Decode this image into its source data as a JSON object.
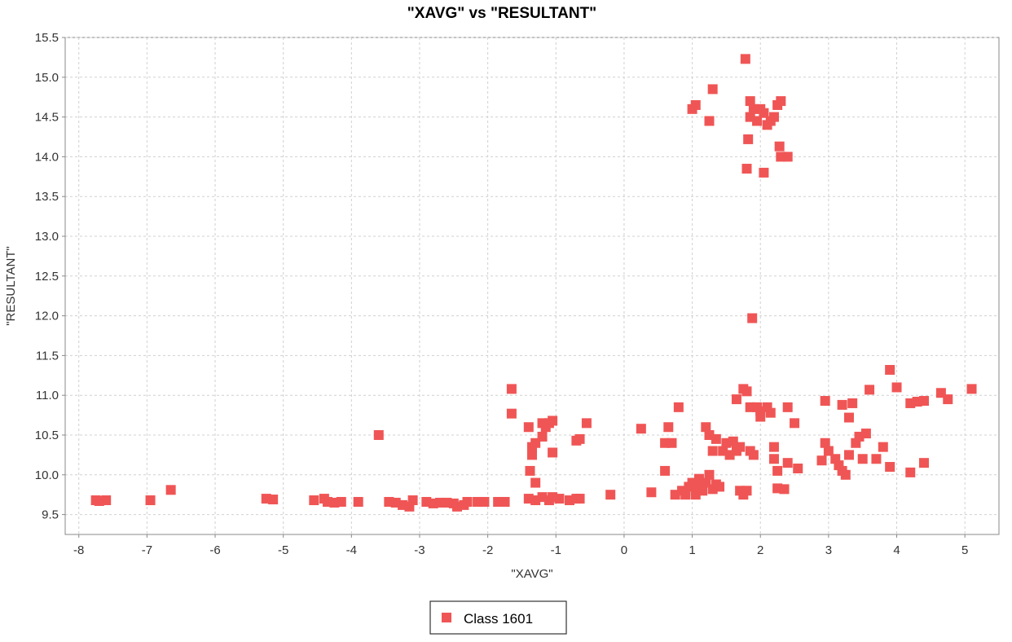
{
  "chart_data": {
    "type": "scatter",
    "title": "\"XAVG\" vs \"RESULTANT\"",
    "xlabel": "\"XAVG\"",
    "ylabel": "\"RESULTANT\"",
    "xlim": [
      -8.2,
      5.5
    ],
    "ylim": [
      9.25,
      15.5
    ],
    "x_ticks": [
      "-8",
      "-7",
      "-6",
      "-5",
      "-4",
      "-3",
      "-2",
      "-1",
      "0",
      "1",
      "2",
      "3",
      "4",
      "5"
    ],
    "y_ticks": [
      "9.5",
      "10.0",
      "10.5",
      "11.0",
      "11.5",
      "12.0",
      "12.5",
      "13.0",
      "13.5",
      "14.0",
      "14.5",
      "15.0",
      "15.5"
    ],
    "grid": true,
    "legend_position": "bottom-center",
    "marker": "square",
    "series": [
      {
        "name": "Class 1601",
        "color": "#f05555",
        "points": [
          [
            -7.75,
            9.68
          ],
          [
            -7.7,
            9.67
          ],
          [
            -7.6,
            9.68
          ],
          [
            -6.95,
            9.68
          ],
          [
            -6.65,
            9.81
          ],
          [
            -5.25,
            9.7
          ],
          [
            -5.15,
            9.69
          ],
          [
            -4.55,
            9.68
          ],
          [
            -4.4,
            9.7
          ],
          [
            -4.35,
            9.66
          ],
          [
            -4.25,
            9.65
          ],
          [
            -4.15,
            9.66
          ],
          [
            -3.9,
            9.66
          ],
          [
            -3.6,
            10.5
          ],
          [
            -3.45,
            9.66
          ],
          [
            -3.35,
            9.65
          ],
          [
            -3.25,
            9.62
          ],
          [
            -3.15,
            9.6
          ],
          [
            -3.1,
            9.68
          ],
          [
            -2.9,
            9.66
          ],
          [
            -2.8,
            9.64
          ],
          [
            -2.7,
            9.65
          ],
          [
            -2.6,
            9.65
          ],
          [
            -2.5,
            9.64
          ],
          [
            -2.45,
            9.6
          ],
          [
            -2.35,
            9.62
          ],
          [
            -2.3,
            9.66
          ],
          [
            -2.15,
            9.66
          ],
          [
            -2.05,
            9.66
          ],
          [
            -1.85,
            9.66
          ],
          [
            -1.75,
            9.66
          ],
          [
            -1.65,
            11.08
          ],
          [
            -1.65,
            10.77
          ],
          [
            -1.4,
            10.6
          ],
          [
            -1.38,
            10.05
          ],
          [
            -1.35,
            10.35
          ],
          [
            -1.35,
            10.25
          ],
          [
            -1.3,
            10.4
          ],
          [
            -1.3,
            9.9
          ],
          [
            -1.2,
            10.48
          ],
          [
            -1.2,
            10.65
          ],
          [
            -1.15,
            10.6
          ],
          [
            -1.1,
            10.65
          ],
          [
            -1.05,
            10.68
          ],
          [
            -1.05,
            10.28
          ],
          [
            -1.4,
            9.7
          ],
          [
            -1.3,
            9.68
          ],
          [
            -1.2,
            9.72
          ],
          [
            -1.1,
            9.68
          ],
          [
            -1.05,
            9.72
          ],
          [
            -0.95,
            9.7
          ],
          [
            -0.8,
            9.68
          ],
          [
            -0.7,
            9.7
          ],
          [
            -0.65,
            9.7
          ],
          [
            -0.7,
            10.43
          ],
          [
            -0.65,
            10.45
          ],
          [
            -0.55,
            10.65
          ],
          [
            -0.2,
            9.75
          ],
          [
            0.25,
            10.58
          ],
          [
            0.4,
            9.78
          ],
          [
            0.6,
            10.4
          ],
          [
            0.6,
            10.05
          ],
          [
            0.65,
            10.6
          ],
          [
            0.7,
            10.4
          ],
          [
            0.75,
            9.75
          ],
          [
            0.8,
            10.85
          ],
          [
            0.85,
            9.8
          ],
          [
            0.9,
            9.75
          ],
          [
            0.95,
            9.85
          ],
          [
            1.0,
            9.9
          ],
          [
            1.05,
            9.8
          ],
          [
            1.1,
            9.95
          ],
          [
            1.05,
            9.75
          ],
          [
            1.1,
            9.85
          ],
          [
            1.15,
            9.8
          ],
          [
            1.2,
            9.9
          ],
          [
            1.25,
            10.0
          ],
          [
            1.3,
            9.82
          ],
          [
            1.35,
            9.88
          ],
          [
            1.4,
            9.85
          ],
          [
            1.2,
            10.6
          ],
          [
            1.25,
            10.5
          ],
          [
            1.3,
            10.3
          ],
          [
            1.35,
            10.45
          ],
          [
            1.45,
            10.3
          ],
          [
            1.5,
            10.4
          ],
          [
            1.55,
            10.25
          ],
          [
            1.6,
            10.42
          ],
          [
            1.65,
            10.3
          ],
          [
            1.7,
            10.35
          ],
          [
            1.65,
            10.95
          ],
          [
            1.75,
            11.08
          ],
          [
            1.8,
            11.05
          ],
          [
            1.85,
            10.85
          ],
          [
            1.7,
            9.8
          ],
          [
            1.75,
            9.75
          ],
          [
            1.8,
            9.8
          ],
          [
            1.85,
            10.3
          ],
          [
            1.9,
            10.25
          ],
          [
            1.95,
            10.85
          ],
          [
            2.0,
            10.8
          ],
          [
            2.0,
            10.73
          ],
          [
            2.1,
            10.85
          ],
          [
            2.15,
            10.78
          ],
          [
            2.2,
            10.2
          ],
          [
            2.2,
            10.35
          ],
          [
            2.25,
            10.05
          ],
          [
            2.25,
            9.83
          ],
          [
            2.35,
            9.82
          ],
          [
            2.4,
            10.15
          ],
          [
            2.4,
            10.85
          ],
          [
            2.5,
            10.65
          ],
          [
            2.55,
            10.08
          ],
          [
            1.0,
            14.6
          ],
          [
            1.05,
            14.65
          ],
          [
            1.3,
            14.85
          ],
          [
            1.25,
            14.45
          ],
          [
            1.78,
            15.23
          ],
          [
            1.85,
            14.5
          ],
          [
            1.85,
            14.7
          ],
          [
            1.9,
            14.6
          ],
          [
            1.95,
            14.45
          ],
          [
            2.0,
            14.6
          ],
          [
            2.05,
            14.55
          ],
          [
            2.1,
            14.4
          ],
          [
            2.15,
            14.45
          ],
          [
            2.2,
            14.5
          ],
          [
            2.25,
            14.65
          ],
          [
            2.3,
            14.7
          ],
          [
            2.28,
            14.13
          ],
          [
            2.3,
            14.0
          ],
          [
            2.4,
            14.0
          ],
          [
            1.82,
            14.22
          ],
          [
            1.8,
            13.85
          ],
          [
            2.05,
            13.8
          ],
          [
            1.88,
            11.97
          ],
          [
            2.95,
            10.93
          ],
          [
            2.95,
            10.4
          ],
          [
            3.0,
            10.3
          ],
          [
            2.9,
            10.18
          ],
          [
            3.1,
            10.2
          ],
          [
            3.15,
            10.12
          ],
          [
            3.2,
            10.05
          ],
          [
            3.25,
            10.0
          ],
          [
            3.3,
            10.72
          ],
          [
            3.2,
            10.88
          ],
          [
            3.35,
            10.9
          ],
          [
            3.3,
            10.25
          ],
          [
            3.4,
            10.4
          ],
          [
            3.45,
            10.48
          ],
          [
            3.5,
            10.2
          ],
          [
            3.55,
            10.52
          ],
          [
            3.6,
            11.07
          ],
          [
            3.7,
            10.2
          ],
          [
            3.8,
            10.35
          ],
          [
            3.9,
            10.1
          ],
          [
            3.9,
            11.32
          ],
          [
            4.0,
            11.1
          ],
          [
            4.2,
            10.9
          ],
          [
            4.3,
            10.92
          ],
          [
            4.4,
            10.93
          ],
          [
            4.2,
            10.03
          ],
          [
            4.4,
            10.15
          ],
          [
            4.65,
            11.03
          ],
          [
            4.75,
            10.95
          ],
          [
            5.1,
            11.08
          ]
        ]
      }
    ]
  }
}
